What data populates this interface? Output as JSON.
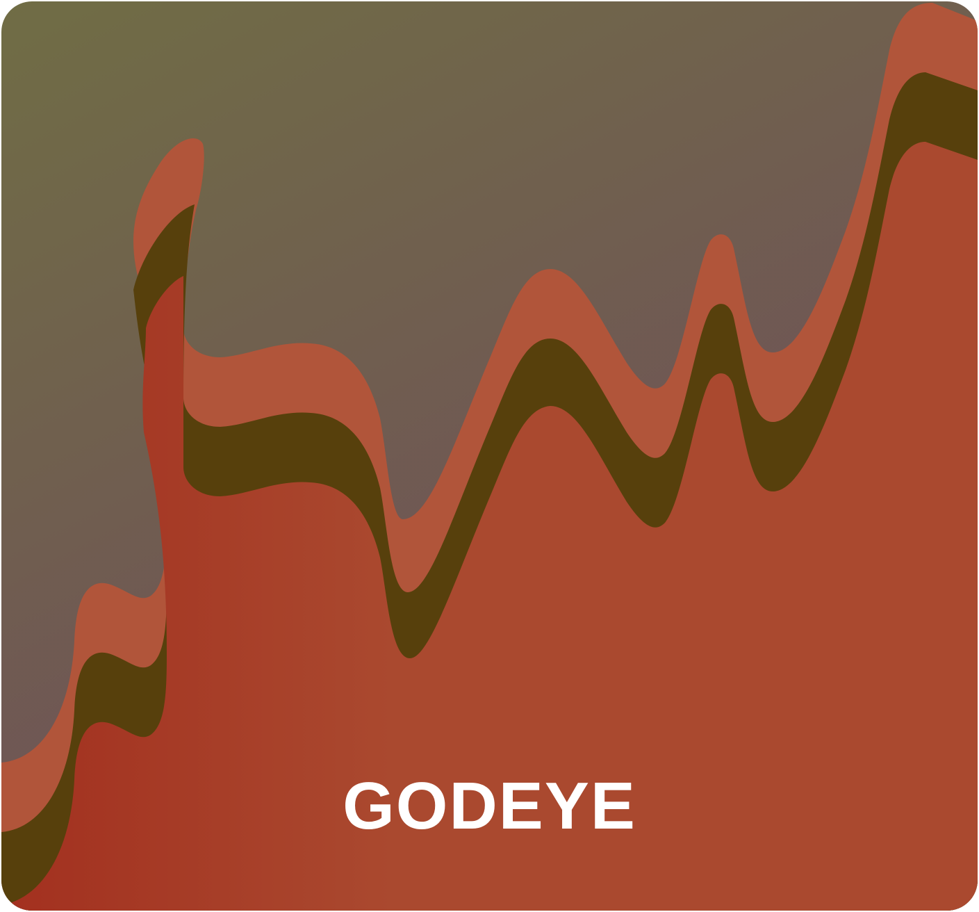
{
  "brand": {
    "name": "GODEYE"
  },
  "colors": {
    "sky_start": "#706d45",
    "sky_end": "#6f4c5c",
    "band_orange": "#b1553a",
    "band_dark": "#57400c",
    "ground_red": "#a3301f",
    "ground_mid": "#aa492f"
  }
}
